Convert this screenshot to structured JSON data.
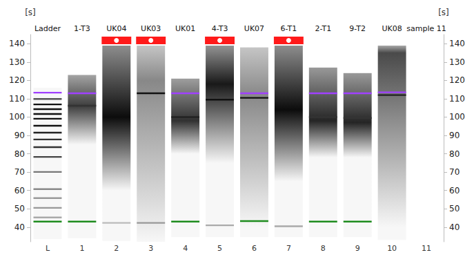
{
  "chart_data": {
    "type": "gel",
    "y_label": "[s]",
    "categories": [
      "Ladder",
      "1-T3",
      "UK04",
      "UK03",
      "UK01",
      "4-T3",
      "UK07",
      "6-T1",
      "2-T1",
      "9-T2",
      "UK08",
      "sample 11"
    ],
    "lane_numbers": [
      "L",
      "1",
      "2",
      "3",
      "4",
      "5",
      "6",
      "7",
      "8",
      "9",
      "10",
      "11"
    ],
    "flags": [
      false,
      false,
      true,
      true,
      false,
      true,
      false,
      true,
      false,
      false,
      false,
      false
    ],
    "ylim": [
      32,
      145
    ],
    "yticks": [
      40,
      50,
      60,
      70,
      80,
      90,
      100,
      110,
      120,
      130,
      140
    ],
    "grid": false,
    "lanes": [
      {
        "extent": [
          116,
          33.5
        ],
        "smear": null,
        "bands": [
          {
            "y": 113.3,
            "color": "#a040ff"
          },
          {
            "y": 109.9,
            "color": "#555555"
          },
          {
            "y": 106.9,
            "color": "#111111"
          },
          {
            "y": 104.3,
            "color": "#111111"
          },
          {
            "y": 101.7,
            "color": "#111111"
          },
          {
            "y": 99.1,
            "color": "#111111"
          },
          {
            "y": 95.3,
            "color": "#111111"
          },
          {
            "y": 91.5,
            "color": "#222222"
          },
          {
            "y": 87.8,
            "color": "#333333"
          },
          {
            "y": 83.6,
            "color": "#333333"
          },
          {
            "y": 78.3,
            "color": "#444444"
          },
          {
            "y": 70.1,
            "color": "#777777"
          },
          {
            "y": 60.7,
            "color": "#888888"
          },
          {
            "y": 55.8,
            "color": "#999999"
          },
          {
            "y": 50.5,
            "color": "#999999"
          },
          {
            "y": 45.3,
            "color": "#aaaaaa"
          },
          {
            "y": 43,
            "color": "#1e8c1e"
          }
        ]
      },
      {
        "extent": [
          123,
          34
        ],
        "smear": {
          "top": 123,
          "peak": 106,
          "bottom": 85,
          "intensity": 0.75
        },
        "bands": [
          {
            "y": 113,
            "color": "#a040ff"
          },
          {
            "y": 106.2,
            "color": "#333333"
          },
          {
            "y": 43,
            "color": "#1e8c1e"
          }
        ]
      },
      {
        "extent": [
          139,
          32.5
        ],
        "smear": {
          "top": 139,
          "peak": 100,
          "bottom": 60,
          "intensity": 0.95
        },
        "bands": [
          {
            "y": 42.3,
            "color": "#bbbbbb"
          }
        ]
      },
      {
        "extent": [
          139,
          32
        ],
        "smear": {
          "top": 139,
          "peak": 120,
          "bottom": 32,
          "intensity": 0.45
        },
        "bands": [
          {
            "y": 113,
            "color": "#111111"
          },
          {
            "y": 42.3,
            "color": "#999999"
          }
        ]
      },
      {
        "extent": [
          121,
          34.5
        ],
        "smear": {
          "top": 121,
          "peak": 98,
          "bottom": 80,
          "intensity": 0.8
        },
        "bands": [
          {
            "y": 113,
            "color": "#a040ff"
          },
          {
            "y": 100,
            "color": "#222222"
          },
          {
            "y": 43,
            "color": "#1e8c1e"
          }
        ]
      },
      {
        "extent": [
          139,
          34.5
        ],
        "smear": {
          "top": 139,
          "peak": 118,
          "bottom": 75,
          "intensity": 0.9
        },
        "bands": [
          {
            "y": 109.5,
            "color": "#111111"
          },
          {
            "y": 41,
            "color": "#aaaaaa"
          }
        ]
      },
      {
        "extent": [
          138,
          34.5
        ],
        "smear": {
          "top": 138,
          "peak": 112,
          "bottom": 40,
          "intensity": 0.45
        },
        "bands": [
          {
            "y": 113,
            "color": "#a040ff"
          },
          {
            "y": 110.5,
            "color": "#111111"
          },
          {
            "y": 43.3,
            "color": "#1e8c1e"
          }
        ]
      },
      {
        "extent": [
          139,
          34.5
        ],
        "smear": {
          "top": 139,
          "peak": 104,
          "bottom": 65,
          "intensity": 0.95
        },
        "bands": [
          {
            "y": 40.5,
            "color": "#aaaaaa"
          }
        ]
      },
      {
        "extent": [
          127,
          34.5
        ],
        "smear": {
          "top": 127,
          "peak": 98,
          "bottom": 78,
          "intensity": 0.85
        },
        "bands": [
          {
            "y": 113,
            "color": "#a040ff"
          },
          {
            "y": 100,
            "color": "#333333"
          },
          {
            "y": 43,
            "color": "#1e8c1e"
          }
        ]
      },
      {
        "extent": [
          124,
          34.5
        ],
        "smear": {
          "top": 124,
          "peak": 97,
          "bottom": 78,
          "intensity": 0.85
        },
        "bands": [
          {
            "y": 113,
            "color": "#a040ff"
          },
          {
            "y": 99.5,
            "color": "#333333"
          },
          {
            "y": 43,
            "color": "#1e8c1e"
          }
        ]
      },
      {
        "extent": [
          139,
          33
        ],
        "smear": {
          "top": 139,
          "peak": 135,
          "bottom": 40,
          "intensity": 0.7
        },
        "bands": [
          {
            "y": 113.5,
            "color": "#a040ff"
          },
          {
            "y": 112,
            "color": "#222222"
          }
        ]
      },
      {
        "extent": null,
        "smear": null,
        "bands": []
      }
    ]
  }
}
